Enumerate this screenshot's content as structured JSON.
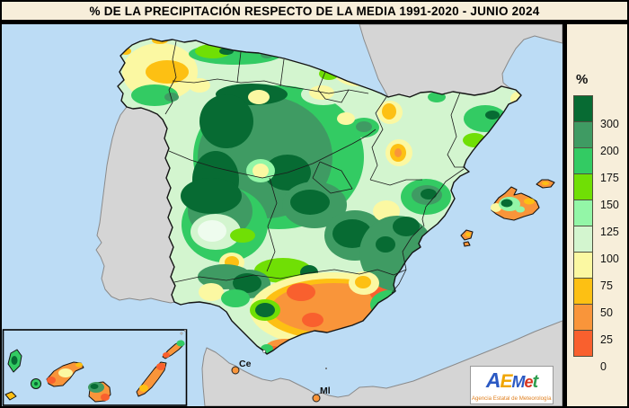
{
  "title": "% DE LA PRECIPITACIÓN RESPECTO DE LA MEDIA 1991-2020 - JUNIO 2024",
  "legend": {
    "unit_label": "%",
    "bands": [
      {
        "label": "300",
        "color": "#076b33"
      },
      {
        "label": "200",
        "color": "#3f9b63"
      },
      {
        "label": "175",
        "color": "#33cb63"
      },
      {
        "label": "150",
        "color": "#70df05"
      },
      {
        "label": "125",
        "color": "#93f6a7"
      },
      {
        "label": "100",
        "color": "#d3f5cf"
      },
      {
        "label": "75",
        "color": "#fbf8a2"
      },
      {
        "label": "50",
        "color": "#fdc013"
      },
      {
        "label": "25",
        "color": "#f9953a"
      },
      {
        "label": "0",
        "color": "#f9602e"
      }
    ]
  },
  "map": {
    "sea_color": "#bcdcf5",
    "neighbor_land_color": "#d5d5d5",
    "city_labels": [
      {
        "text": "Ce"
      },
      {
        "text": "Ml"
      }
    ]
  },
  "logo": {
    "letters": [
      "A",
      "E",
      "M",
      "e",
      "t"
    ],
    "subtitle": "Agencia Estatal de Meteorología"
  }
}
